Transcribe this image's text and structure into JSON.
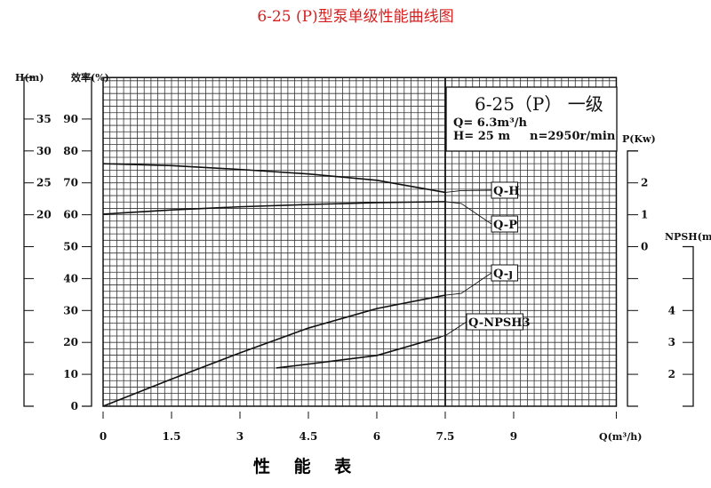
{
  "title": "6-25 (P)型泵单级性能曲线图",
  "footer": "性 能 表",
  "info_box": {
    "model": "6-25（P） 一级",
    "flow": "Q= 6.3m³/h",
    "head": "H= 25 m",
    "speed": "n=2950r/min"
  },
  "chart_data": {
    "type": "line",
    "title": "6-25 (P)型泵单级性能曲线图",
    "grid": true,
    "x_axis": {
      "label": "Q(m³/h)",
      "ticks": [
        "0",
        "1.5",
        "3",
        "4.5",
        "6",
        "7.5",
        "9"
      ],
      "tick_values": [
        0,
        1.5,
        3,
        4.5,
        6,
        7.5,
        9
      ],
      "range": [
        0,
        11.25
      ]
    },
    "y_axes": {
      "efficiency": {
        "label": "效率(%)",
        "ticks": [
          "0",
          "10",
          "20",
          "30",
          "40",
          "50",
          "60",
          "70",
          "80",
          "90"
        ],
        "tick_values": [
          0,
          10,
          20,
          30,
          40,
          50,
          60,
          70,
          80,
          90
        ],
        "range": [
          0,
          103
        ]
      },
      "head": {
        "label": "H(m)",
        "ticks": [
          "20",
          "25",
          "30",
          "35"
        ],
        "tick_values": [
          20,
          25,
          30,
          35
        ]
      },
      "power": {
        "label": "P(Kw)",
        "ticks": [
          "0",
          "1",
          "2"
        ],
        "tick_values": [
          0,
          1,
          2
        ]
      },
      "npsh": {
        "label": "NPSH(m)",
        "ticks": [
          "2",
          "3",
          "4"
        ],
        "tick_values": [
          2,
          3,
          4
        ]
      }
    },
    "series": [
      {
        "name": "Q-H",
        "axis": "head",
        "x": [
          0,
          1.5,
          3,
          4.5,
          6,
          7.5
        ],
        "y": [
          28.0,
          27.7,
          27.1,
          26.4,
          25.4,
          23.5
        ]
      },
      {
        "name": "Q-P",
        "axis": "power",
        "x": [
          0,
          1.5,
          3,
          4.5,
          6,
          7.5
        ],
        "y": [
          1.02,
          1.15,
          1.25,
          1.32,
          1.38,
          1.41
        ]
      },
      {
        "name": "Q-η",
        "axis": "efficiency",
        "x": [
          0,
          1.5,
          3,
          4.5,
          6,
          7.5
        ],
        "y": [
          0,
          8.5,
          16.7,
          24.5,
          30.6,
          34.8
        ]
      },
      {
        "name": "Q-NPSH3",
        "axis": "npsh",
        "x": [
          3.8,
          4.5,
          6,
          7.4
        ],
        "y": [
          2.2,
          2.32,
          2.59,
          3.17
        ]
      }
    ],
    "label_texts": {
      "Q-H": "Q-H",
      "Q-P": "Q-P",
      "Q-η": "Q-ȷ",
      "Q-NPSH3": "Q-NPSH3"
    }
  }
}
